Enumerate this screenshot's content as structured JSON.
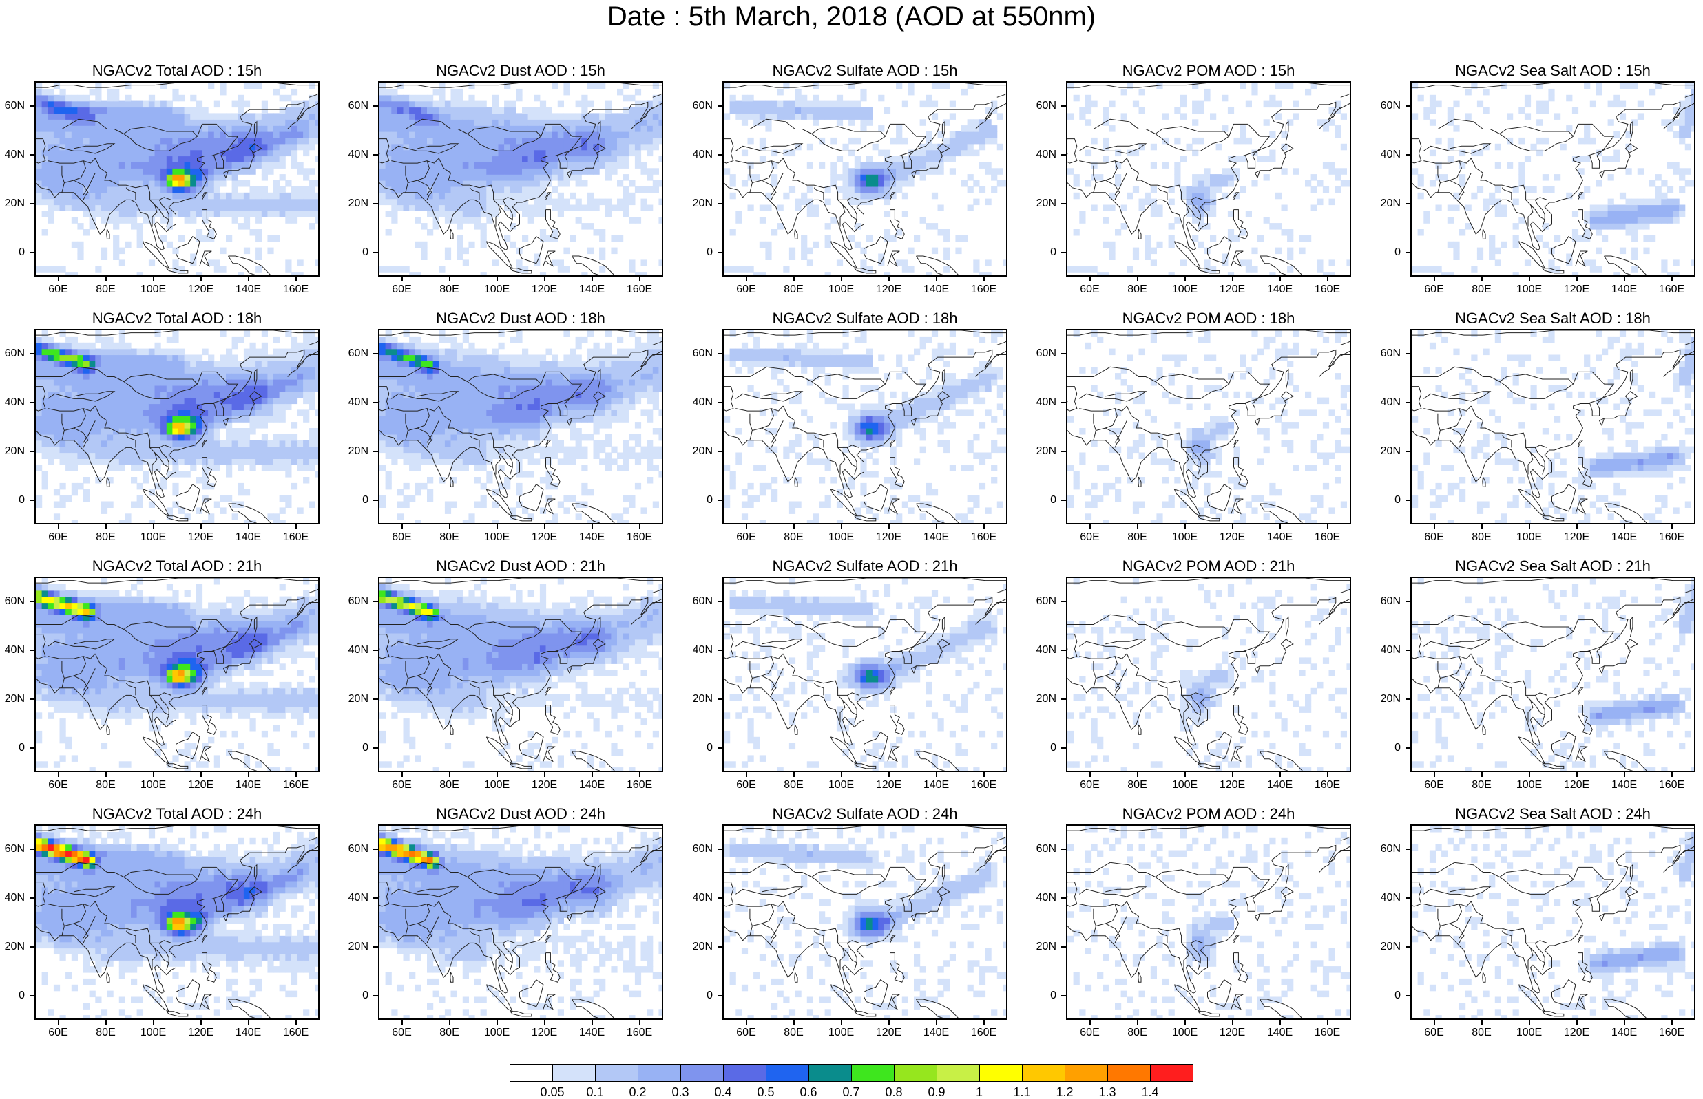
{
  "title": "Date : 5th March, 2018 (AOD at 550nm)",
  "x_ticks": [
    "60E",
    "80E",
    "100E",
    "120E",
    "140E",
    "160E"
  ],
  "y_ticks": [
    "60N",
    "40N",
    "20N",
    "0"
  ],
  "panels": [
    [
      {
        "title": "NGACv2 Total AOD : 15h",
        "species": "total",
        "hour": 15
      },
      {
        "title": "NGACv2 Dust AOD : 15h",
        "species": "dust",
        "hour": 15
      },
      {
        "title": "NGACv2 Sulfate AOD : 15h",
        "species": "sulfate",
        "hour": 15
      },
      {
        "title": "NGACv2 POM AOD : 15h",
        "species": "pom",
        "hour": 15
      },
      {
        "title": "NGACv2 Sea Salt AOD : 15h",
        "species": "seasalt",
        "hour": 15
      }
    ],
    [
      {
        "title": "NGACv2 Total AOD : 18h",
        "species": "total",
        "hour": 18
      },
      {
        "title": "NGACv2 Dust AOD : 18h",
        "species": "dust",
        "hour": 18
      },
      {
        "title": "NGACv2 Sulfate AOD : 18h",
        "species": "sulfate",
        "hour": 18
      },
      {
        "title": "NGACv2 POM AOD : 18h",
        "species": "pom",
        "hour": 18
      },
      {
        "title": "NGACv2 Sea Salt AOD : 18h",
        "species": "seasalt",
        "hour": 18
      }
    ],
    [
      {
        "title": "NGACv2 Total AOD : 21h",
        "species": "total",
        "hour": 21
      },
      {
        "title": "NGACv2 Dust AOD : 21h",
        "species": "dust",
        "hour": 21
      },
      {
        "title": "NGACv2 Sulfate AOD : 21h",
        "species": "sulfate",
        "hour": 21
      },
      {
        "title": "NGACv2 POM AOD : 21h",
        "species": "pom",
        "hour": 21
      },
      {
        "title": "NGACv2 Sea Salt AOD : 21h",
        "species": "seasalt",
        "hour": 21
      }
    ],
    [
      {
        "title": "NGACv2 Total AOD : 24h",
        "species": "total",
        "hour": 24
      },
      {
        "title": "NGACv2 Dust AOD : 24h",
        "species": "dust",
        "hour": 24
      },
      {
        "title": "NGACv2 Sulfate AOD : 24h",
        "species": "sulfate",
        "hour": 24
      },
      {
        "title": "NGACv2 POM AOD : 24h",
        "species": "pom",
        "hour": 24
      },
      {
        "title": "NGACv2 Sea Salt  AOD : 24h",
        "species": "seasalt",
        "hour": 24
      }
    ]
  ],
  "map_extent": {
    "lon": [
      50,
      170
    ],
    "lat": [
      -10,
      70
    ]
  },
  "colorbar": {
    "labels": [
      "0.05",
      "0.1",
      "0.2",
      "0.3",
      "0.4",
      "0.5",
      "0.6",
      "0.7",
      "0.8",
      "0.9",
      "1",
      "1.1",
      "1.2",
      "1.3",
      "1.4"
    ],
    "colors": [
      "#ffffff",
      "#d4e2fa",
      "#b3c8f6",
      "#98b2f4",
      "#7f94ee",
      "#5a6ae6",
      "#1f64f0",
      "#0a8c8c",
      "#3ee61e",
      "#96e61e",
      "#c8f046",
      "#ffff00",
      "#ffc800",
      "#ffa000",
      "#ff7800",
      "#ff1e1e"
    ]
  }
}
